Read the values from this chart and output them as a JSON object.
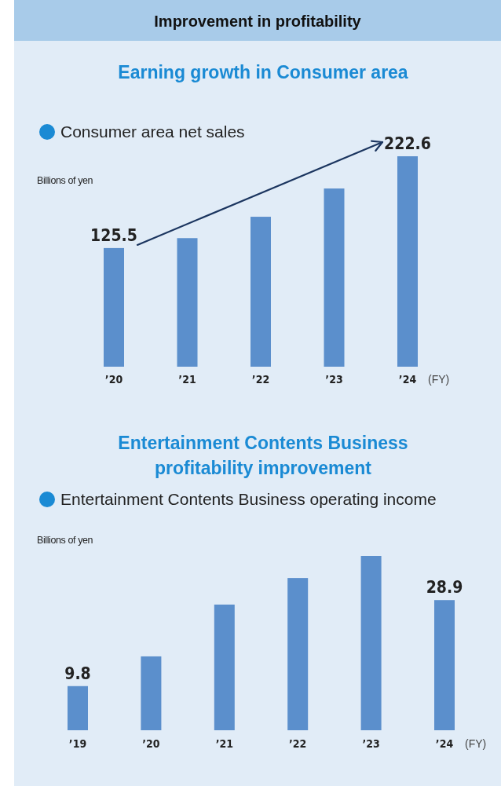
{
  "chart_data": [
    {
      "type": "bar",
      "title": "Improvement in profitability",
      "subtitle": "Earning growth in Consumer area",
      "ylabel": "Billions of yen",
      "xlabel": "(FY)",
      "legend": "top left",
      "categories": [
        "’20",
        "’21",
        "’22",
        "’23",
        "’24"
      ],
      "series": [
        {
          "name": "Consumer area net sales",
          "color": "#5b8fcc",
          "values": [
            125.5,
            136,
            158.6,
            188.5,
            222.6
          ],
          "value_labels": [
            "125.5",
            null,
            null,
            null,
            "222.6"
          ]
        }
      ]
    },
    {
      "type": "bar",
      "title": "Entertainment Contents Business profitability improvement",
      "ylabel": "Billions of yen",
      "xlabel": "(FY)",
      "legend": "top left",
      "categories": [
        "’19",
        "’20",
        "’21",
        "’22",
        "’23",
        "’24"
      ],
      "series": [
        {
          "name": "Entertainment Contents Business operating income",
          "color": "#5b8fcc",
          "values": [
            9.8,
            16.4,
            27.9,
            33.8,
            38.7,
            28.9
          ],
          "value_labels": [
            "9.8",
            null,
            null,
            null,
            null,
            "28.9"
          ]
        }
      ]
    }
  ]
}
